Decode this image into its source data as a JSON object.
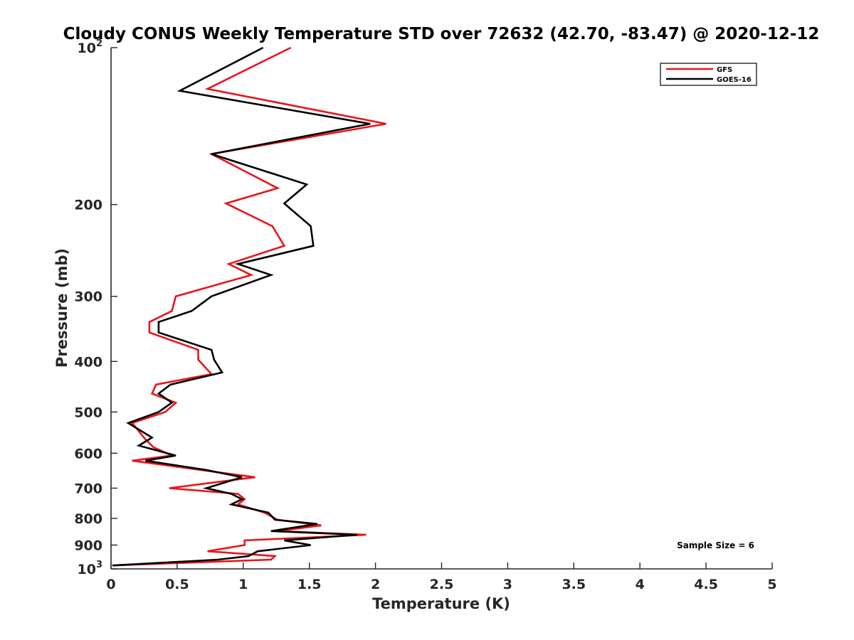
{
  "chart_data": {
    "type": "line",
    "title": "Cloudy CONUS Weekly Temperature STD over 72632 (42.70, -83.47) @ 2020-12-12",
    "xlabel": "Temperature (K)",
    "ylabel": "Pressure (mb)",
    "xlim": [
      0,
      5
    ],
    "ylim": [
      100,
      1000
    ],
    "y_scale": "log",
    "y_reversed": true,
    "x_ticks": [
      {
        "value": 0,
        "label": "0"
      },
      {
        "value": 0.5,
        "label": "0.5"
      },
      {
        "value": 1,
        "label": "1"
      },
      {
        "value": 1.5,
        "label": "1.5"
      },
      {
        "value": 2,
        "label": "2"
      },
      {
        "value": 2.5,
        "label": "2.5"
      },
      {
        "value": 3,
        "label": "3"
      },
      {
        "value": 3.5,
        "label": "3.5"
      },
      {
        "value": 4,
        "label": "4"
      },
      {
        "value": 4.5,
        "label": "4.5"
      },
      {
        "value": 5,
        "label": "5"
      }
    ],
    "y_ticks": [
      {
        "value": 100,
        "base": "10",
        "exp": "2"
      },
      {
        "value": 200,
        "label": "200"
      },
      {
        "value": 300,
        "label": "300"
      },
      {
        "value": 400,
        "label": "400"
      },
      {
        "value": 500,
        "label": "500"
      },
      {
        "value": 600,
        "label": "600"
      },
      {
        "value": 700,
        "label": "700"
      },
      {
        "value": 800,
        "label": "800"
      },
      {
        "value": 900,
        "label": "900"
      },
      {
        "value": 1000,
        "base": "10",
        "exp": "3"
      }
    ],
    "grid": false,
    "legend_position": "top-right",
    "annotation": "Sample Size = 6",
    "series": [
      {
        "name": "GFS",
        "color": "#e8161b",
        "points": [
          {
            "x": 1.36,
            "y": 100
          },
          {
            "x": 0.73,
            "y": 120
          },
          {
            "x": 2.08,
            "y": 140
          },
          {
            "x": 0.76,
            "y": 160
          },
          {
            "x": 1.26,
            "y": 186
          },
          {
            "x": 0.87,
            "y": 199
          },
          {
            "x": 1.22,
            "y": 220
          },
          {
            "x": 1.31,
            "y": 240
          },
          {
            "x": 0.89,
            "y": 260
          },
          {
            "x": 1.06,
            "y": 273
          },
          {
            "x": 0.49,
            "y": 300
          },
          {
            "x": 0.46,
            "y": 320
          },
          {
            "x": 0.29,
            "y": 336
          },
          {
            "x": 0.29,
            "y": 352
          },
          {
            "x": 0.66,
            "y": 380
          },
          {
            "x": 0.66,
            "y": 397
          },
          {
            "x": 0.76,
            "y": 423
          },
          {
            "x": 0.34,
            "y": 443
          },
          {
            "x": 0.31,
            "y": 461
          },
          {
            "x": 0.49,
            "y": 480
          },
          {
            "x": 0.41,
            "y": 500
          },
          {
            "x": 0.16,
            "y": 525
          },
          {
            "x": 0.26,
            "y": 564
          },
          {
            "x": 0.32,
            "y": 584
          },
          {
            "x": 0.46,
            "y": 606
          },
          {
            "x": 0.16,
            "y": 620
          },
          {
            "x": 0.76,
            "y": 650
          },
          {
            "x": 1.09,
            "y": 667
          },
          {
            "x": 0.44,
            "y": 700
          },
          {
            "x": 0.96,
            "y": 718
          },
          {
            "x": 1.01,
            "y": 735
          },
          {
            "x": 0.96,
            "y": 752
          },
          {
            "x": 1.16,
            "y": 780
          },
          {
            "x": 1.26,
            "y": 805
          },
          {
            "x": 1.59,
            "y": 825
          },
          {
            "x": 1.26,
            "y": 846
          },
          {
            "x": 1.93,
            "y": 860
          },
          {
            "x": 1.01,
            "y": 882
          },
          {
            "x": 1.01,
            "y": 900
          },
          {
            "x": 0.73,
            "y": 925
          },
          {
            "x": 1.24,
            "y": 945
          },
          {
            "x": 1.21,
            "y": 960
          },
          {
            "x": 0.01,
            "y": 985
          }
        ]
      },
      {
        "name": "GOES-16",
        "color": "#000000",
        "points": [
          {
            "x": 1.15,
            "y": 100
          },
          {
            "x": 0.52,
            "y": 121
          },
          {
            "x": 1.96,
            "y": 140
          },
          {
            "x": 0.76,
            "y": 160
          },
          {
            "x": 1.48,
            "y": 183
          },
          {
            "x": 1.31,
            "y": 199
          },
          {
            "x": 1.51,
            "y": 220
          },
          {
            "x": 1.53,
            "y": 240
          },
          {
            "x": 0.96,
            "y": 260
          },
          {
            "x": 1.21,
            "y": 273
          },
          {
            "x": 0.76,
            "y": 300
          },
          {
            "x": 0.61,
            "y": 320
          },
          {
            "x": 0.36,
            "y": 336
          },
          {
            "x": 0.36,
            "y": 352
          },
          {
            "x": 0.76,
            "y": 380
          },
          {
            "x": 0.78,
            "y": 397
          },
          {
            "x": 0.84,
            "y": 420
          },
          {
            "x": 0.45,
            "y": 443
          },
          {
            "x": 0.36,
            "y": 461
          },
          {
            "x": 0.46,
            "y": 480
          },
          {
            "x": 0.36,
            "y": 500
          },
          {
            "x": 0.13,
            "y": 525
          },
          {
            "x": 0.31,
            "y": 560
          },
          {
            "x": 0.21,
            "y": 580
          },
          {
            "x": 0.49,
            "y": 606
          },
          {
            "x": 0.26,
            "y": 620
          },
          {
            "x": 0.72,
            "y": 646
          },
          {
            "x": 0.99,
            "y": 667
          },
          {
            "x": 0.72,
            "y": 700
          },
          {
            "x": 0.91,
            "y": 718
          },
          {
            "x": 0.99,
            "y": 735
          },
          {
            "x": 0.91,
            "y": 752
          },
          {
            "x": 1.19,
            "y": 780
          },
          {
            "x": 1.24,
            "y": 805
          },
          {
            "x": 1.56,
            "y": 820
          },
          {
            "x": 1.21,
            "y": 846
          },
          {
            "x": 1.86,
            "y": 860
          },
          {
            "x": 1.31,
            "y": 882
          },
          {
            "x": 1.51,
            "y": 900
          },
          {
            "x": 1.11,
            "y": 925
          },
          {
            "x": 1.04,
            "y": 945
          },
          {
            "x": 0.81,
            "y": 960
          },
          {
            "x": 0.01,
            "y": 985
          }
        ]
      }
    ]
  }
}
